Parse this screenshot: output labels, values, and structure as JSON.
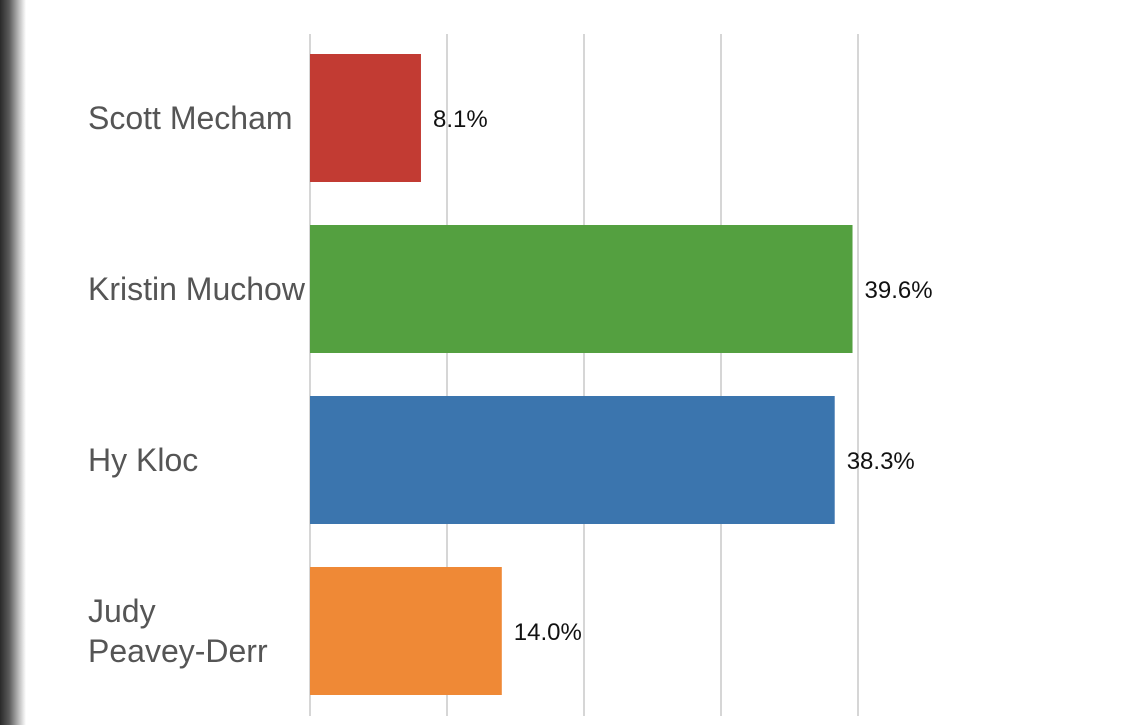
{
  "chart_data": {
    "type": "bar",
    "orientation": "horizontal",
    "categories": [
      "Scott Mecham",
      "Kristin Muchow",
      "Hy Kloc",
      "Judy Peavey-Derr"
    ],
    "category_lines": [
      [
        "Scott Mecham"
      ],
      [
        "Kristin Muchow"
      ],
      [
        "Hy Kloc"
      ],
      [
        "Judy",
        "Peavey-Derr"
      ]
    ],
    "values": [
      8.1,
      39.6,
      38.3,
      14.0
    ],
    "value_labels": [
      "8.1%",
      "39.6%",
      "38.3%",
      "14.0%"
    ],
    "colors": [
      "#c23b33",
      "#54a040",
      "#3b75ae",
      "#ef8936"
    ],
    "xlim": [
      0,
      50
    ],
    "grid": true,
    "legend": false,
    "title": "",
    "xlabel": "",
    "ylabel": ""
  }
}
